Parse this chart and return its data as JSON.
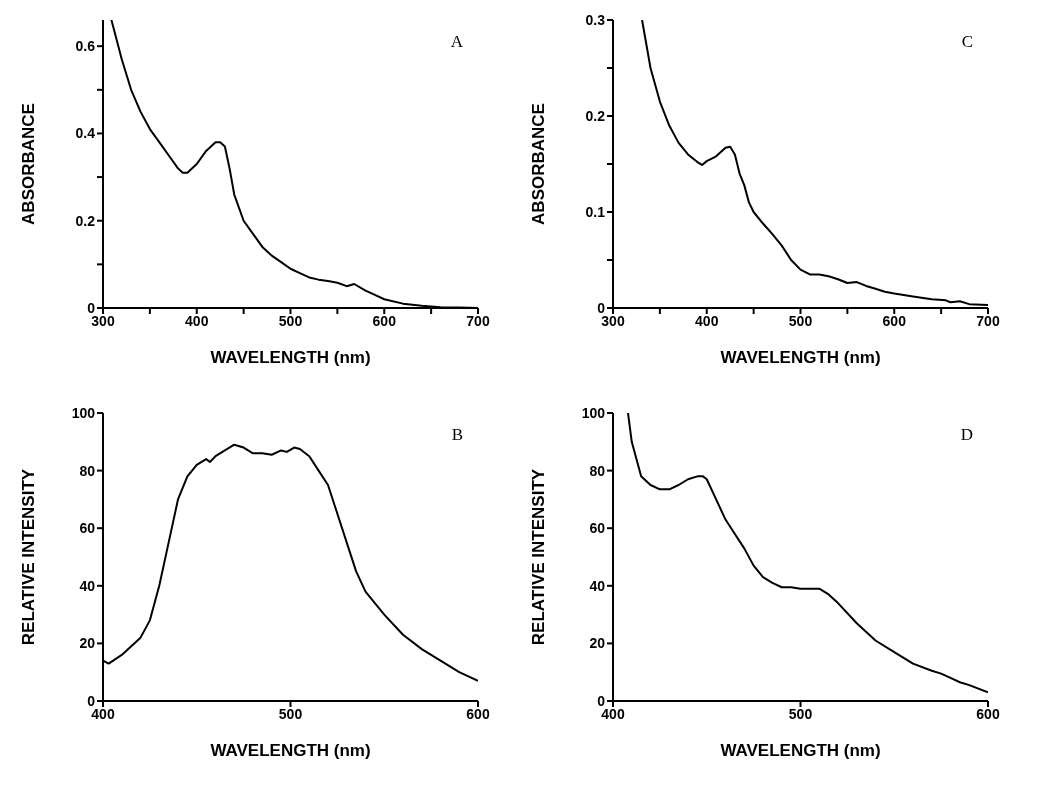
{
  "chart_data": [
    {
      "type": "line",
      "xlabel": "WAVELENGTH (nm)",
      "ylabel": "ABSORBANCE",
      "annotations": [
        "A"
      ],
      "color": "#000000",
      "xlim": [
        300,
        700
      ],
      "ylim": [
        0,
        0.66
      ],
      "xticks": [
        300,
        {
          "value": 350,
          "label": null
        },
        400,
        {
          "value": 450,
          "label": null
        },
        500,
        {
          "value": 550,
          "label": null
        },
        600,
        {
          "value": 650,
          "label": null
        },
        700
      ],
      "yticks": [
        0,
        {
          "value": 0.1,
          "label": null
        },
        0.2,
        {
          "value": 0.3,
          "label": null
        },
        0.4,
        {
          "value": 0.5,
          "label": null
        },
        0.6
      ],
      "x": [
        309,
        320,
        330,
        340,
        350,
        360,
        370,
        380,
        385,
        390,
        400,
        410,
        420,
        425,
        430,
        435,
        440,
        450,
        460,
        470,
        480,
        490,
        500,
        510,
        520,
        530,
        540,
        550,
        560,
        568,
        580,
        590,
        600,
        620,
        640,
        660,
        680,
        700
      ],
      "values": [
        0.66,
        0.57,
        0.5,
        0.45,
        0.41,
        0.38,
        0.35,
        0.32,
        0.31,
        0.31,
        0.33,
        0.36,
        0.38,
        0.38,
        0.37,
        0.32,
        0.26,
        0.2,
        0.17,
        0.14,
        0.12,
        0.105,
        0.09,
        0.08,
        0.07,
        0.065,
        0.062,
        0.058,
        0.05,
        0.055,
        0.04,
        0.03,
        0.02,
        0.01,
        0.005,
        0.002,
        0.001,
        0
      ]
    },
    {
      "type": "line",
      "xlabel": "WAVELENGTH (nm)",
      "ylabel": "ABSORBANCE",
      "annotations": [
        "C"
      ],
      "color": "#000000",
      "xlim": [
        300,
        700
      ],
      "ylim": [
        0,
        0.3
      ],
      "xticks": [
        300,
        {
          "value": 350,
          "label": null
        },
        400,
        {
          "value": 450,
          "label": null
        },
        500,
        {
          "value": 550,
          "label": null
        },
        600,
        {
          "value": 650,
          "label": null
        },
        700
      ],
      "yticks": [
        0,
        {
          "value": 0.05,
          "label": null
        },
        0.1,
        {
          "value": 0.15,
          "label": null
        },
        0.2,
        {
          "value": 0.25,
          "label": null
        },
        0.3
      ],
      "x": [
        331,
        340,
        350,
        360,
        370,
        380,
        390,
        395,
        400,
        410,
        420,
        425,
        430,
        435,
        440,
        445,
        450,
        460,
        470,
        480,
        490,
        500,
        510,
        520,
        530,
        540,
        550,
        560,
        570,
        580,
        590,
        600,
        620,
        640,
        655,
        660,
        670,
        680,
        700
      ],
      "values": [
        0.3,
        0.25,
        0.215,
        0.19,
        0.172,
        0.16,
        0.152,
        0.149,
        0.153,
        0.158,
        0.167,
        0.168,
        0.16,
        0.14,
        0.128,
        0.11,
        0.1,
        0.088,
        0.077,
        0.065,
        0.05,
        0.04,
        0.035,
        0.035,
        0.033,
        0.03,
        0.026,
        0.027,
        0.023,
        0.02,
        0.017,
        0.015,
        0.012,
        0.009,
        0.008,
        0.006,
        0.007,
        0.004,
        0.003
      ]
    },
    {
      "type": "line",
      "xlabel": "WAVELENGTH (nm)",
      "ylabel": "RELATIVE INTENSITY",
      "annotations": [
        "B"
      ],
      "color": "#000000",
      "xlim": [
        400,
        600
      ],
      "ylim": [
        0,
        100
      ],
      "xticks": [
        400,
        500,
        600
      ],
      "yticks": [
        0,
        20,
        40,
        60,
        80,
        100
      ],
      "x": [
        400,
        403,
        410,
        420,
        425,
        430,
        435,
        440,
        445,
        450,
        455,
        457,
        460,
        465,
        470,
        475,
        480,
        485,
        490,
        495,
        498,
        502,
        505,
        510,
        515,
        520,
        525,
        530,
        535,
        540,
        545,
        550,
        560,
        570,
        580,
        590,
        600
      ],
      "values": [
        14,
        13,
        16,
        22,
        28,
        40,
        55,
        70,
        78,
        82,
        84,
        83,
        85,
        87,
        89,
        88,
        86,
        86,
        85.5,
        87,
        86.5,
        88,
        87.5,
        85,
        80,
        75,
        65,
        55,
        45,
        38,
        34,
        30,
        23,
        18,
        14,
        10,
        7
      ]
    },
    {
      "type": "line",
      "xlabel": "WAVELENGTH (nm)",
      "ylabel": "RELATIVE INTENSITY",
      "annotations": [
        "D"
      ],
      "color": "#000000",
      "xlim": [
        400,
        600
      ],
      "ylim": [
        0,
        100
      ],
      "xticks": [
        400,
        500,
        600
      ],
      "yticks": [
        0,
        20,
        40,
        60,
        80,
        100
      ],
      "x": [
        408,
        410,
        415,
        420,
        425,
        430,
        435,
        440,
        445,
        448,
        450,
        455,
        460,
        465,
        470,
        475,
        480,
        485,
        490,
        495,
        500,
        510,
        515,
        520,
        530,
        540,
        550,
        560,
        570,
        575,
        580,
        585,
        590,
        600
      ],
      "values": [
        100,
        90,
        78,
        75,
        73.5,
        73.5,
        75,
        77,
        78,
        78,
        77,
        70,
        63,
        58,
        53,
        47,
        43,
        41,
        39.5,
        39.5,
        39,
        39,
        37,
        34,
        27,
        21,
        17,
        13,
        10.5,
        9.5,
        8,
        6.5,
        5.5,
        3
      ]
    }
  ]
}
